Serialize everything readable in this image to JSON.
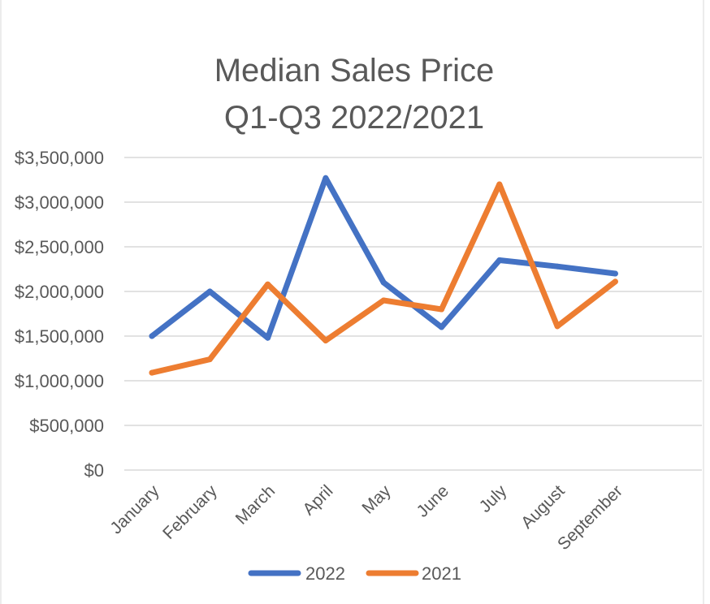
{
  "chart_data": {
    "type": "line",
    "title": [
      "Median Sales Price",
      "Q1-Q3 2022/2021"
    ],
    "categories": [
      "January",
      "February",
      "March",
      "April",
      "May",
      "June",
      "July",
      "August",
      "September"
    ],
    "series": [
      {
        "name": "2022",
        "color": "#4472c4",
        "values": [
          1500000,
          2000000,
          1480000,
          3270000,
          2100000,
          1600000,
          2350000,
          2280000,
          2200000
        ]
      },
      {
        "name": "2021",
        "color": "#ed7d31",
        "values": [
          1090000,
          1240000,
          2080000,
          1450000,
          1900000,
          1800000,
          3200000,
          1610000,
          2110000
        ]
      }
    ],
    "ylim": [
      0,
      3500000
    ],
    "ytick_values": [
      0,
      500000,
      1000000,
      1500000,
      2000000,
      2500000,
      3000000,
      3500000
    ],
    "ytick_labels": [
      "$0",
      "$500,000",
      "$1,000,000",
      "$1,500,000",
      "$2,000,000",
      "$2,500,000",
      "$3,000,000",
      "$3,500,000"
    ],
    "grid": true,
    "legend": "bottom-center"
  }
}
